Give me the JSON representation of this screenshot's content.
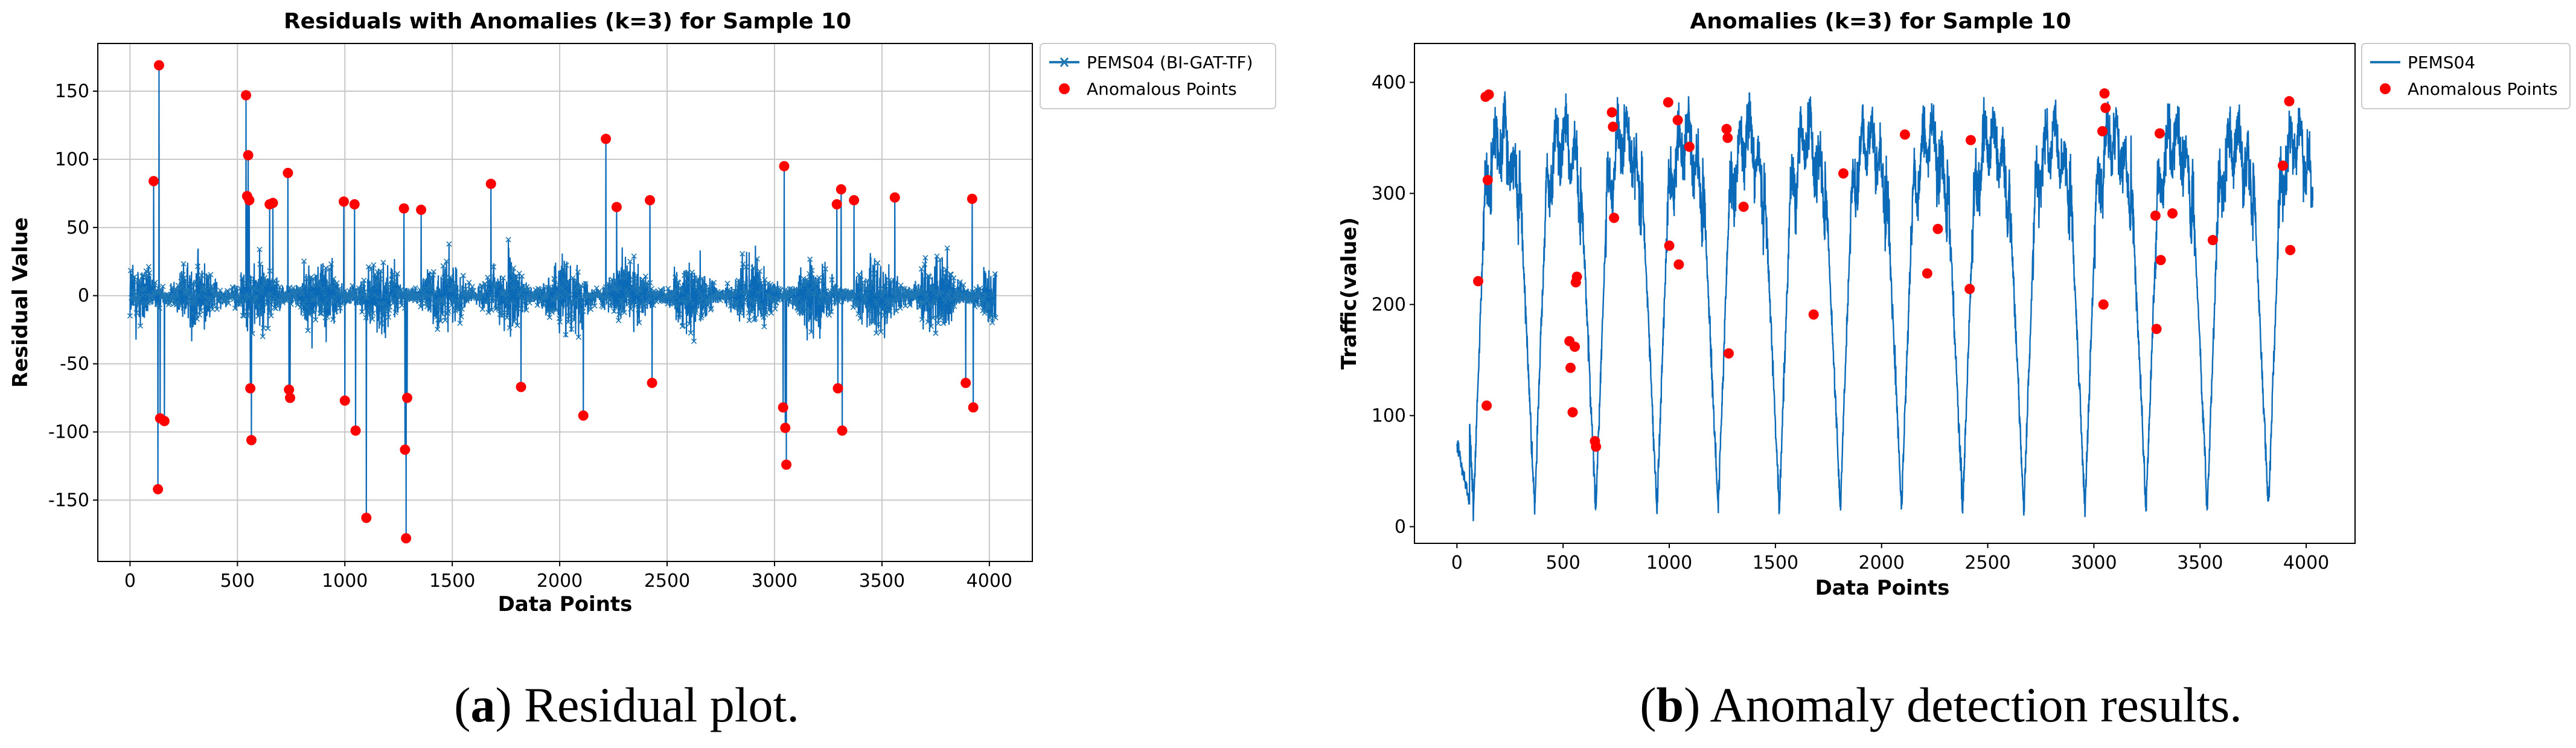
{
  "chart_data": [
    {
      "type": "line",
      "title": "Residuals with Anomalies (k=3) for Sample 10",
      "xlabel": "Data Points",
      "ylabel": "Residual Value",
      "xlim": [
        -150,
        4200
      ],
      "ylim": [
        -195,
        185
      ],
      "xticks": [
        0,
        500,
        1000,
        1500,
        2000,
        2500,
        3000,
        3500,
        4000
      ],
      "yticks": [
        -150,
        -100,
        -50,
        0,
        50,
        100,
        150
      ],
      "grid": true,
      "legend_position": "outside-right-top",
      "series_name": "PEMS04 (BI-GAT-TF)",
      "anomaly_name": "Anomalous Points",
      "n_points": 4032,
      "noise_band": [
        -35,
        35
      ],
      "anomalies": [
        {
          "x": 110,
          "y": 84
        },
        {
          "x": 135,
          "y": 169
        },
        {
          "x": 130,
          "y": -142
        },
        {
          "x": 140,
          "y": -90
        },
        {
          "x": 160,
          "y": -92
        },
        {
          "x": 540,
          "y": 147
        },
        {
          "x": 550,
          "y": 103
        },
        {
          "x": 545,
          "y": 73
        },
        {
          "x": 555,
          "y": 70
        },
        {
          "x": 560,
          "y": -68
        },
        {
          "x": 565,
          "y": -106
        },
        {
          "x": 650,
          "y": 67
        },
        {
          "x": 665,
          "y": 68
        },
        {
          "x": 735,
          "y": 90
        },
        {
          "x": 740,
          "y": -69
        },
        {
          "x": 745,
          "y": -75
        },
        {
          "x": 995,
          "y": 69
        },
        {
          "x": 1000,
          "y": -77
        },
        {
          "x": 1045,
          "y": 67
        },
        {
          "x": 1050,
          "y": -99
        },
        {
          "x": 1100,
          "y": -163
        },
        {
          "x": 1275,
          "y": 64
        },
        {
          "x": 1280,
          "y": -113
        },
        {
          "x": 1290,
          "y": -75
        },
        {
          "x": 1285,
          "y": -178
        },
        {
          "x": 1355,
          "y": 63
        },
        {
          "x": 1680,
          "y": 82
        },
        {
          "x": 1820,
          "y": -67
        },
        {
          "x": 2110,
          "y": -88
        },
        {
          "x": 2215,
          "y": 115
        },
        {
          "x": 2265,
          "y": 65
        },
        {
          "x": 2420,
          "y": 70
        },
        {
          "x": 2430,
          "y": -64
        },
        {
          "x": 3045,
          "y": 95
        },
        {
          "x": 3040,
          "y": -82
        },
        {
          "x": 3050,
          "y": -97
        },
        {
          "x": 3055,
          "y": -124
        },
        {
          "x": 3290,
          "y": 67
        },
        {
          "x": 3295,
          "y": -68
        },
        {
          "x": 3310,
          "y": 78
        },
        {
          "x": 3315,
          "y": -99
        },
        {
          "x": 3370,
          "y": 70
        },
        {
          "x": 3560,
          "y": 72
        },
        {
          "x": 3890,
          "y": -64
        },
        {
          "x": 3920,
          "y": 71
        },
        {
          "x": 3925,
          "y": -82
        }
      ]
    },
    {
      "type": "line",
      "title": "Anomalies (k=3) for Sample 10",
      "xlabel": "Data Points",
      "ylabel": "Traffic(value)",
      "xlim": [
        -200,
        4230
      ],
      "ylim": [
        -15,
        435
      ],
      "xticks": [
        0,
        500,
        1000,
        1500,
        2000,
        2500,
        3000,
        3500,
        4000
      ],
      "yticks": [
        0,
        100,
        200,
        300,
        400
      ],
      "grid": false,
      "legend_position": "outside-right-top",
      "series_name": "PEMS04",
      "anomaly_name": "Anomalous Points",
      "n_points": 4032,
      "period": 288,
      "daily_min": 15,
      "daily_max": 380,
      "anomalies": [
        {
          "x": 100,
          "y": 221
        },
        {
          "x": 135,
          "y": 387
        },
        {
          "x": 150,
          "y": 389
        },
        {
          "x": 145,
          "y": 312
        },
        {
          "x": 140,
          "y": 109
        },
        {
          "x": 530,
          "y": 167
        },
        {
          "x": 535,
          "y": 143
        },
        {
          "x": 545,
          "y": 103
        },
        {
          "x": 555,
          "y": 162
        },
        {
          "x": 560,
          "y": 220
        },
        {
          "x": 565,
          "y": 225
        },
        {
          "x": 650,
          "y": 77
        },
        {
          "x": 655,
          "y": 72
        },
        {
          "x": 730,
          "y": 373
        },
        {
          "x": 735,
          "y": 360
        },
        {
          "x": 740,
          "y": 278
        },
        {
          "x": 995,
          "y": 382
        },
        {
          "x": 1000,
          "y": 253
        },
        {
          "x": 1040,
          "y": 366
        },
        {
          "x": 1045,
          "y": 236
        },
        {
          "x": 1095,
          "y": 342
        },
        {
          "x": 1270,
          "y": 358
        },
        {
          "x": 1275,
          "y": 350
        },
        {
          "x": 1280,
          "y": 156
        },
        {
          "x": 1350,
          "y": 288
        },
        {
          "x": 1680,
          "y": 191
        },
        {
          "x": 1820,
          "y": 318
        },
        {
          "x": 2110,
          "y": 353
        },
        {
          "x": 2215,
          "y": 228
        },
        {
          "x": 2265,
          "y": 268
        },
        {
          "x": 2420,
          "y": 348
        },
        {
          "x": 2415,
          "y": 214
        },
        {
          "x": 3040,
          "y": 356
        },
        {
          "x": 3045,
          "y": 200
        },
        {
          "x": 3050,
          "y": 390
        },
        {
          "x": 3055,
          "y": 377
        },
        {
          "x": 3290,
          "y": 280
        },
        {
          "x": 3295,
          "y": 178
        },
        {
          "x": 3310,
          "y": 354
        },
        {
          "x": 3315,
          "y": 240
        },
        {
          "x": 3370,
          "y": 282
        },
        {
          "x": 3560,
          "y": 258
        },
        {
          "x": 3890,
          "y": 325
        },
        {
          "x": 3920,
          "y": 383
        },
        {
          "x": 3925,
          "y": 249
        }
      ]
    }
  ],
  "captions": [
    {
      "label": "(a)",
      "paren_open": "(",
      "letter": "a",
      "paren_close": ")",
      "text": " Residual plot."
    },
    {
      "label": "(b)",
      "paren_open": "(",
      "letter": "b",
      "paren_close": ")",
      "text": " Anomaly detection results."
    }
  ],
  "colors": {
    "series": "#1f77b4",
    "series_dark": "#0a6ab8",
    "anomaly": "#ff0000",
    "grid": "#c8c8c8",
    "legend_border": "#cccccc"
  }
}
